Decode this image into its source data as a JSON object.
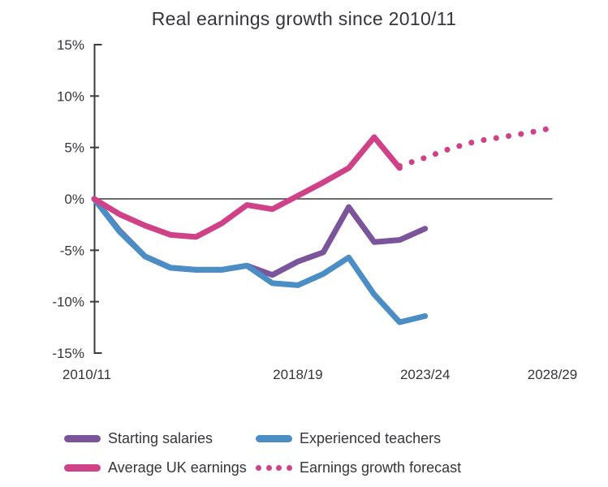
{
  "chart_data": {
    "type": "line",
    "title": "Real earnings growth since 2010/11",
    "y_axis": {
      "unit": "%",
      "lim": [
        -15,
        15
      ],
      "ticks": [
        {
          "v": 15,
          "label": "15%"
        },
        {
          "v": 10,
          "label": "10%"
        },
        {
          "v": 5,
          "label": "5%"
        },
        {
          "v": 0,
          "label": "0%"
        },
        {
          "v": -5,
          "label": "-5%"
        },
        {
          "v": -10,
          "label": "-10%"
        },
        {
          "v": -15,
          "label": "-15%"
        }
      ]
    },
    "x_axis": {
      "categories": [
        "2010/11",
        "2011/12",
        "2012/13",
        "2013/14",
        "2014/15",
        "2015/16",
        "2016/17",
        "2017/18",
        "2018/19",
        "2019/20",
        "2020/21",
        "2021/22",
        "2022/23",
        "2023/24",
        "2024/25",
        "2025/26",
        "2026/27",
        "2027/28",
        "2028/29"
      ],
      "ticks": [
        {
          "index": 0,
          "label": "2010/11"
        },
        {
          "index": 8,
          "label": "2018/19"
        },
        {
          "index": 13,
          "label": "2023/24"
        },
        {
          "index": 18,
          "label": "2028/29"
        }
      ]
    },
    "zero_line": true,
    "grid": false,
    "legend_position": "bottom",
    "series": [
      {
        "name": "Starting salaries",
        "color": "#7b559c",
        "style": "solid",
        "start_index": 0,
        "values": [
          0,
          -3.1,
          -5.6,
          -6.7,
          -6.9,
          -6.9,
          -6.5,
          -7.4,
          -6.1,
          -5.2,
          -0.8,
          -4.2,
          -4.0,
          -2.9
        ]
      },
      {
        "name": "Experienced teachers",
        "color": "#4a8ec5",
        "style": "solid",
        "start_index": 0,
        "values": [
          0,
          -3.2,
          -5.6,
          -6.7,
          -6.9,
          -6.9,
          -6.5,
          -8.2,
          -8.4,
          -7.3,
          -5.7,
          -9.3,
          -12.0,
          -11.4
        ]
      },
      {
        "name": "Average UK earnings",
        "color": "#cf4288",
        "style": "solid",
        "start_index": 0,
        "values": [
          0,
          -1.5,
          -2.6,
          -3.5,
          -3.7,
          -2.4,
          -0.6,
          -1.0,
          0.3,
          1.6,
          3.0,
          6.0,
          3.0
        ]
      },
      {
        "name": "Earnings growth forecast",
        "color": "#cf4288",
        "style": "dotted",
        "start_index": 12,
        "values": [
          3.2,
          4.0,
          4.9,
          5.6,
          6.0,
          6.4,
          6.9
        ]
      }
    ],
    "colors": {
      "axis": "#3b3b41",
      "text": "#35353b"
    }
  }
}
